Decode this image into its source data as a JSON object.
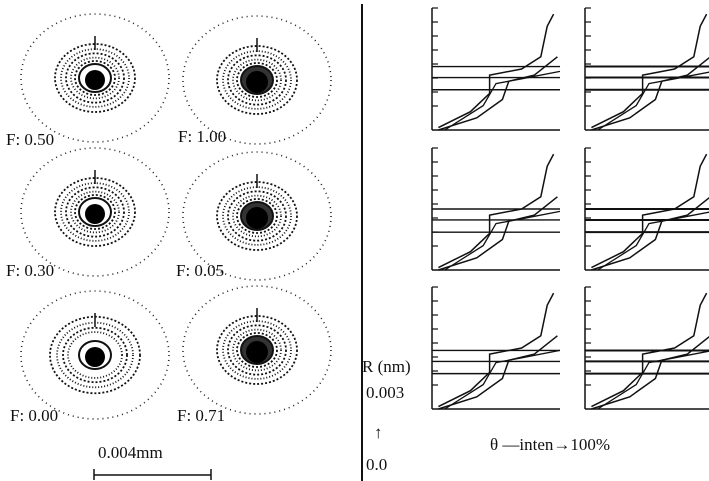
{
  "spot_labels": [
    "F: 0.50",
    "F: 1.00",
    "F: 0.30",
    "F: 0.05",
    "F: 0.00",
    "F: 0.71"
  ],
  "scale_bar": "0.004mm",
  "y_axis_label": "R (nm)",
  "y_tick_top": "0.003",
  "y_tick_bottom": "0.0",
  "arrow_label": "↑",
  "x_axis_label": "θ —inten→100%"
}
